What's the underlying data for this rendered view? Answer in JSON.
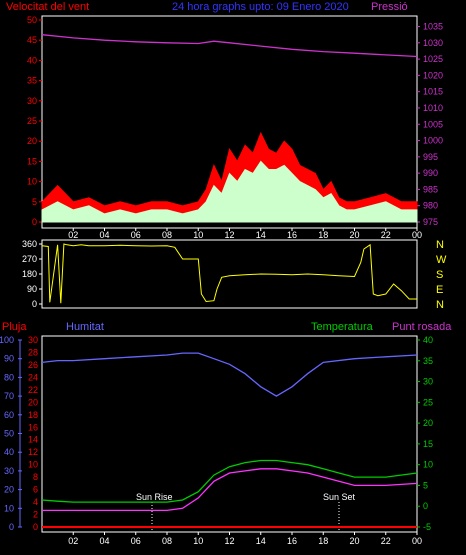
{
  "header": {
    "wind_label": "Velocitat del vent",
    "title": "24 hora graphs upto: 09 Enero 2020",
    "pressure_label": "Pressió"
  },
  "bottom_header": {
    "rain_label": "Pluja",
    "humidity_label": "Humitat",
    "temperature_label": "Temperatura",
    "dewpoint_label": "Punt rosada"
  },
  "annotations": {
    "sunrise": "Sun Rise",
    "sunset": "Sun Set"
  },
  "colors": {
    "wind": "#ff0000",
    "gust": "#ccffcc",
    "pressure": "#cc33cc",
    "direction": "#ffff00",
    "humidity": "#6666ff",
    "temperature": "#00cc00",
    "dewpoint": "#ff33ff",
    "rain": "#ff0000",
    "axis_red": "#ff0000",
    "axis_green": "#00cc00",
    "axis_blue": "#6666ff",
    "axis_yellow": "#ffff00"
  },
  "chart_data": [
    {
      "type": "area",
      "name": "wind-pressure",
      "x_ticks": [
        "02",
        "04",
        "06",
        "08",
        "10",
        "12",
        "14",
        "16",
        "18",
        "20",
        "22",
        "00"
      ],
      "y_left_ticks": [
        0,
        5,
        10,
        15,
        20,
        25,
        30,
        35,
        40,
        45,
        50
      ],
      "y_right_ticks": [
        975,
        980,
        985,
        990,
        995,
        1000,
        1005,
        1010,
        1015,
        1020,
        1025,
        1030,
        1035
      ],
      "ylim_left": [
        0,
        50
      ],
      "ylim_right": [
        975,
        1037
      ],
      "series": [
        {
          "name": "Velocitat del vent",
          "x": [
            0,
            1,
            2,
            3,
            4,
            5,
            6,
            7,
            8,
            9,
            10,
            10.5,
            11,
            11.5,
            12,
            12.5,
            13,
            13.5,
            14,
            14.5,
            15,
            15.5,
            16,
            16.5,
            17,
            17.5,
            18,
            18.5,
            19,
            19.5,
            20,
            21,
            22,
            23,
            24
          ],
          "values": [
            5,
            9,
            5,
            6,
            4,
            5,
            4,
            5,
            5,
            4,
            5,
            8,
            14,
            10,
            18,
            15,
            19,
            17,
            22,
            18,
            17,
            20,
            18,
            14,
            13,
            12,
            8,
            10,
            6,
            5,
            5,
            6,
            7,
            5,
            5
          ]
        },
        {
          "name": "gust",
          "x": [
            0,
            1,
            2,
            3,
            4,
            5,
            6,
            7,
            8,
            9,
            10,
            10.5,
            11,
            11.5,
            12,
            12.5,
            13,
            13.5,
            14,
            14.5,
            15,
            15.5,
            16,
            16.5,
            17,
            17.5,
            18,
            18.5,
            19,
            19.5,
            20,
            21,
            22,
            23,
            24
          ],
          "values": [
            3,
            5,
            3,
            4,
            2,
            3,
            2,
            3,
            3,
            2,
            3,
            5,
            9,
            7,
            12,
            10,
            13,
            12,
            15,
            13,
            13,
            14,
            12,
            10,
            9,
            8,
            6,
            7,
            4,
            3,
            3,
            4,
            5,
            3,
            3
          ]
        },
        {
          "name": "Pressió",
          "x": [
            0,
            2,
            4,
            6,
            8,
            10,
            11,
            12,
            14,
            16,
            18,
            20,
            22,
            24
          ],
          "values": [
            1032.5,
            1031.5,
            1030.8,
            1030.3,
            1030.0,
            1029.8,
            1030.5,
            1030.0,
            1029.0,
            1028.0,
            1027.3,
            1026.8,
            1026.3,
            1025.8
          ]
        }
      ]
    },
    {
      "type": "line",
      "name": "direction",
      "x_ticks": [
        "02",
        "04",
        "06",
        "08",
        "10",
        "12",
        "14",
        "16",
        "18",
        "20",
        "22",
        "00"
      ],
      "y_left_ticks": [
        0,
        90,
        180,
        270,
        360
      ],
      "y_right_ticks": [
        "N",
        "W",
        "S",
        "E",
        "N"
      ],
      "ylim": [
        0,
        360
      ],
      "series": [
        {
          "name": "direction",
          "x": [
            0,
            0.4,
            0.5,
            1,
            1.2,
            1.4,
            1.6,
            2,
            2.5,
            3,
            4,
            5,
            6,
            7,
            8,
            8.5,
            9,
            10,
            10.2,
            10.5,
            11,
            11.2,
            11.5,
            12,
            13,
            14,
            15,
            16,
            17,
            18,
            19,
            20,
            20.4,
            20.6,
            21,
            21.2,
            21.5,
            22,
            22.5,
            23,
            23.5,
            24
          ],
          "values": [
            350,
            345,
            10,
            355,
            5,
            360,
            355,
            350,
            355,
            350,
            350,
            352,
            350,
            348,
            350,
            340,
            270,
            270,
            60,
            15,
            20,
            90,
            160,
            170,
            175,
            180,
            178,
            176,
            180,
            175,
            170,
            165,
            250,
            330,
            355,
            60,
            50,
            60,
            120,
            80,
            30,
            30
          ]
        }
      ]
    },
    {
      "type": "line",
      "name": "humidity-temperature",
      "x_ticks": [
        "02",
        "04",
        "06",
        "08",
        "10",
        "12",
        "14",
        "16",
        "18",
        "20",
        "22",
        "00"
      ],
      "y_rain_ticks": [
        0,
        10,
        20,
        30,
        40,
        50,
        60,
        70,
        80,
        90,
        100
      ],
      "y_temp_scale_ticks": [
        0,
        2,
        4,
        6,
        8,
        10,
        12,
        14,
        16,
        18,
        20,
        22,
        24,
        26,
        28,
        30
      ],
      "y_right_ticks": [
        -5,
        0,
        5,
        10,
        15,
        20,
        25,
        30,
        35,
        40
      ],
      "ylim_rain": [
        0,
        100
      ],
      "ylim_right": [
        -5,
        40
      ],
      "series": [
        {
          "name": "Humitat",
          "x": [
            0,
            1,
            2,
            4,
            6,
            8,
            9,
            10,
            11,
            12,
            13,
            14,
            15,
            16,
            17,
            18,
            20,
            22,
            24
          ],
          "values": [
            88,
            89,
            89,
            90,
            91,
            92,
            93,
            93,
            90,
            87,
            82,
            75,
            70,
            75,
            82,
            88,
            90,
            91,
            92
          ]
        },
        {
          "name": "Temperatura",
          "x": [
            0,
            1,
            2,
            4,
            6,
            8,
            9,
            10,
            11,
            12,
            13,
            14,
            15,
            16,
            17,
            18,
            19,
            20,
            22,
            24
          ],
          "values": [
            1.5,
            1.2,
            1.0,
            1.0,
            1.0,
            1.0,
            1.5,
            3.5,
            7.5,
            9.5,
            10.5,
            11,
            11,
            10.5,
            10,
            9,
            8,
            7,
            7,
            8
          ]
        },
        {
          "name": "Punt rosada",
          "x": [
            0,
            1,
            2,
            4,
            6,
            8,
            9,
            10,
            11,
            12,
            13,
            14,
            15,
            16,
            17,
            18,
            19,
            20,
            22,
            24
          ],
          "values": [
            -1,
            -1,
            -1,
            -1,
            -1,
            -1,
            -0.5,
            2,
            6,
            8,
            8.5,
            9,
            9,
            8.5,
            8,
            7,
            6,
            5,
            5,
            5.5
          ]
        },
        {
          "name": "Pluja",
          "x": [
            0,
            24
          ],
          "values": [
            0,
            0
          ]
        }
      ]
    }
  ]
}
